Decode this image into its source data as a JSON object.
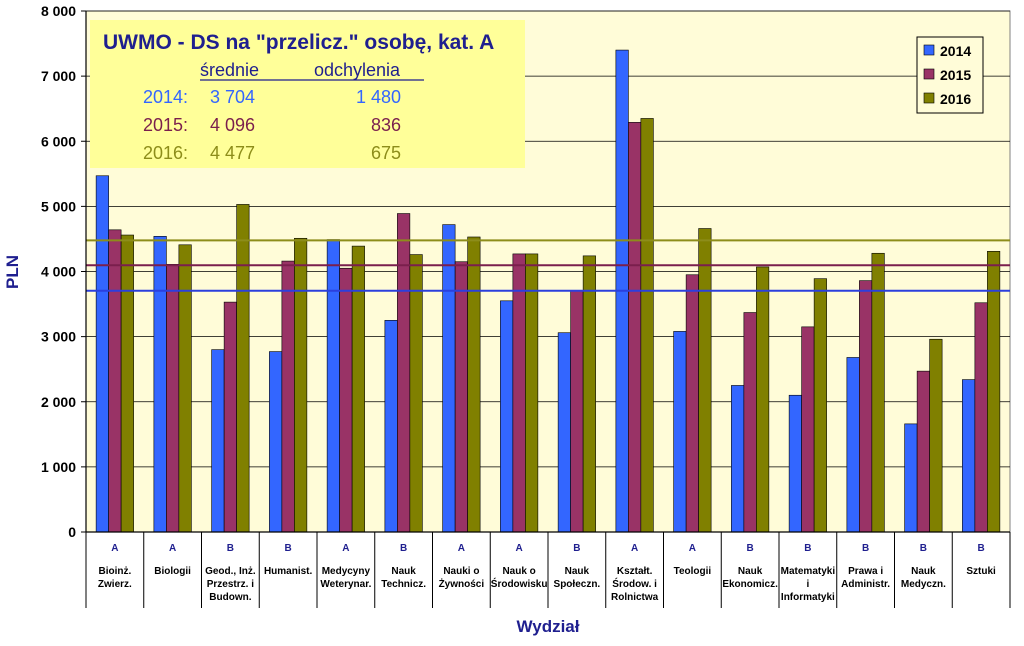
{
  "chart_data": {
    "type": "bar",
    "title": "UWMO - DS na \"przelicz.\" osobę, kat. A",
    "xlabel": "Wydział",
    "ylabel": "PLN",
    "ylim": [
      0,
      8000
    ],
    "yticks": [
      "0",
      "1 000",
      "2 000",
      "3 000",
      "4 000",
      "5 000",
      "6 000",
      "7 000",
      "8 000"
    ],
    "grid": true,
    "legend_position": "top-right",
    "categories": [
      {
        "group": "A",
        "label": [
          "Bioinż.",
          "Zwierz."
        ]
      },
      {
        "group": "A",
        "label": [
          "Biologii"
        ]
      },
      {
        "group": "B",
        "label": [
          "Geod., Inż.",
          "Przestrz. i",
          "Budown."
        ]
      },
      {
        "group": "B",
        "label": [
          "Humanist."
        ]
      },
      {
        "group": "A",
        "label": [
          "Medycyny",
          "Weterynar."
        ]
      },
      {
        "group": "B",
        "label": [
          "Nauk",
          "Technicz."
        ]
      },
      {
        "group": "A",
        "label": [
          "Nauki o",
          "Żywności"
        ]
      },
      {
        "group": "A",
        "label": [
          "Nauk o",
          "Środowisku"
        ]
      },
      {
        "group": "B",
        "label": [
          "Nauk",
          "Społeczn."
        ]
      },
      {
        "group": "A",
        "label": [
          "Kształt.",
          "Środow. i",
          "Rolnictwa"
        ]
      },
      {
        "group": "A",
        "label": [
          "Teologii"
        ]
      },
      {
        "group": "B",
        "label": [
          "Nauk",
          "Ekonomicz."
        ]
      },
      {
        "group": "B",
        "label": [
          "Matematyki",
          "i",
          "Informatyki"
        ]
      },
      {
        "group": "B",
        "label": [
          "Prawa i",
          "Administr."
        ]
      },
      {
        "group": "B",
        "label": [
          "Nauk",
          "Medyczn."
        ]
      },
      {
        "group": "B",
        "label": [
          "Sztuki"
        ]
      }
    ],
    "series": [
      {
        "name": "2014",
        "color": "#3366ff",
        "values": [
          5470,
          4540,
          2800,
          2770,
          4490,
          3250,
          4720,
          3550,
          3060,
          7400,
          3080,
          2250,
          2100,
          2680,
          1660,
          2340
        ]
      },
      {
        "name": "2015",
        "color": "#993366",
        "values": [
          4640,
          4110,
          3530,
          4160,
          4050,
          4890,
          4150,
          4270,
          3700,
          6290,
          3950,
          3370,
          3150,
          3860,
          2470,
          3520
        ]
      },
      {
        "name": "2016",
        "color": "#808000",
        "values": [
          4560,
          4410,
          5030,
          4510,
          4390,
          4260,
          4530,
          4270,
          4240,
          6350,
          4660,
          4070,
          3890,
          4280,
          2960,
          4310
        ]
      }
    ],
    "reference_lines": [
      {
        "series": "2014",
        "value": 3704,
        "color": "#2b3fdd"
      },
      {
        "series": "2015",
        "value": 4096,
        "color": "#7a1f4d"
      },
      {
        "series": "2016",
        "value": 4477,
        "color": "#8d8d1a"
      }
    ],
    "annotation": {
      "header_mean": "średnie",
      "header_dev": "odchylenia",
      "rows": [
        {
          "year": "2014:",
          "mean": "3 704",
          "dev": "1 480",
          "color": "#3366ff"
        },
        {
          "year": "2015:",
          "mean": "4 096",
          "dev": "836",
          "color": "#7a1f4d"
        },
        {
          "year": "2016:",
          "mean": "4 477",
          "dev": "675",
          "color": "#8d8d1a"
        }
      ]
    }
  },
  "colors": {
    "plot_background": "#fffcd8",
    "annotation_background": "#ffff99",
    "legend_background": "#fffcd8",
    "grid": "#000000",
    "axis_title": "#1f1f8f"
  }
}
